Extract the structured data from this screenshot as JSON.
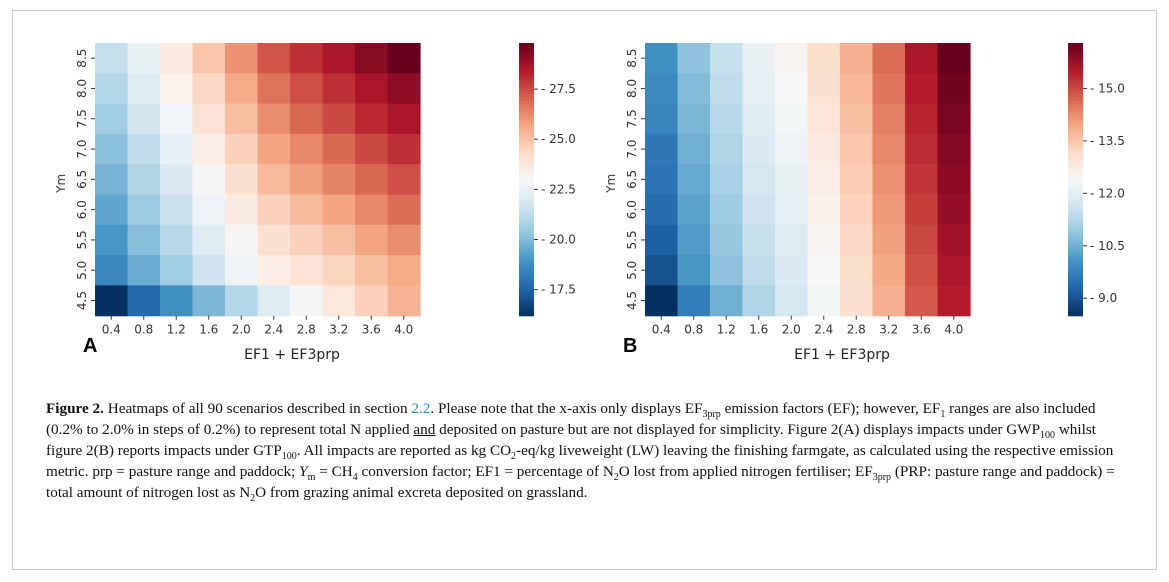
{
  "chart_data": [
    {
      "type": "heatmap",
      "panel_label": "A",
      "xlabel": "EF1 + EF3prp",
      "ylabel": "Ym",
      "x_categories": [
        "0.4",
        "0.8",
        "1.2",
        "1.6",
        "2.0",
        "2.4",
        "2.8",
        "3.2",
        "3.6",
        "4.0"
      ],
      "y_categories": [
        "8.5",
        "8.0",
        "7.5",
        "7.0",
        "6.5",
        "6.0",
        "5.5",
        "5.0",
        "4.5"
      ],
      "colorbar_ticks": [
        "17.5",
        "20.0",
        "22.5",
        "25.0",
        "27.5"
      ],
      "colorbar_range": [
        16.2,
        29.8
      ],
      "colormap": "RdBu_r",
      "values": [
        [
          21.4,
          22.5,
          23.7,
          24.9,
          26.1,
          27.3,
          28.0,
          28.6,
          29.2,
          29.8
        ],
        [
          21.0,
          22.1,
          23.3,
          24.4,
          25.6,
          26.7,
          27.4,
          28.0,
          28.6,
          29.1
        ],
        [
          20.6,
          21.7,
          22.8,
          24.0,
          25.1,
          26.2,
          26.9,
          27.5,
          28.1,
          28.6
        ],
        [
          20.2,
          21.3,
          22.4,
          23.5,
          24.6,
          25.7,
          26.3,
          26.9,
          27.5,
          28.0
        ],
        [
          19.8,
          20.9,
          22.0,
          23.1,
          24.1,
          25.2,
          25.8,
          26.4,
          26.9,
          27.4
        ],
        [
          19.4,
          20.5,
          21.5,
          22.6,
          23.6,
          24.6,
          25.2,
          25.7,
          26.3,
          26.8
        ],
        [
          19.0,
          20.1,
          21.1,
          22.1,
          23.1,
          24.1,
          24.6,
          25.1,
          25.7,
          26.2
        ],
        [
          18.6,
          19.6,
          20.6,
          21.6,
          22.6,
          23.5,
          24.0,
          24.5,
          25.1,
          25.6
        ],
        [
          16.2,
          17.7,
          18.8,
          19.9,
          21.0,
          22.1,
          22.9,
          23.8,
          24.6,
          25.4
        ]
      ]
    },
    {
      "type": "heatmap",
      "panel_label": "B",
      "xlabel": "EF1 + EF3prp",
      "ylabel": "Ym",
      "x_categories": [
        "0.4",
        "0.8",
        "1.2",
        "1.6",
        "2.0",
        "2.4",
        "2.8",
        "3.2",
        "3.6",
        "4.0"
      ],
      "y_categories": [
        "8.5",
        "8.0",
        "7.5",
        "7.0",
        "6.5",
        "6.0",
        "5.5",
        "5.0",
        "4.5"
      ],
      "colorbar_ticks": [
        "9.0",
        "10.5",
        "12.0",
        "13.5",
        "15.0"
      ],
      "colorbar_range": [
        8.5,
        16.3
      ],
      "colormap": "RdBu_r",
      "values": [
        [
          10.0,
          10.8,
          11.5,
          12.1,
          12.5,
          13.1,
          13.8,
          14.6,
          15.6,
          16.3
        ],
        [
          9.9,
          10.7,
          11.4,
          12.0,
          12.4,
          13.0,
          13.7,
          14.5,
          15.5,
          16.2
        ],
        [
          9.8,
          10.6,
          11.3,
          11.9,
          12.3,
          12.9,
          13.6,
          14.4,
          15.4,
          16.1
        ],
        [
          9.6,
          10.5,
          11.2,
          11.8,
          12.2,
          12.8,
          13.5,
          14.3,
          15.3,
          16.0
        ],
        [
          9.5,
          10.4,
          11.1,
          11.7,
          12.1,
          12.7,
          13.4,
          14.2,
          15.2,
          15.9
        ],
        [
          9.4,
          10.3,
          11.0,
          11.6,
          12.0,
          12.6,
          13.3,
          14.1,
          15.1,
          15.8
        ],
        [
          9.2,
          10.2,
          10.9,
          11.5,
          11.9,
          12.5,
          13.2,
          14.0,
          15.0,
          15.7
        ],
        [
          9.0,
          10.1,
          10.8,
          11.4,
          11.8,
          12.4,
          13.1,
          13.9,
          14.9,
          15.6
        ],
        [
          8.5,
          9.7,
          10.5,
          11.2,
          11.7,
          12.3,
          13.0,
          13.8,
          14.8,
          15.5
        ]
      ]
    }
  ],
  "caption": {
    "label": "Figure 2.",
    "s1": " Heatmaps of all 90 scenarios described in section ",
    "section_link": "2.2",
    "s2": ". Please note that the x-axis only displays EF",
    "sub_3prp": "3prp",
    "s3": " emission factors (EF); however, EF",
    "sub_1": "1",
    "s4": " ranges are also included (0.2% to 2.0% in steps of 0.2%) to represent total N applied ",
    "and_underlined": "and",
    "s5": " deposited on pasture but are not displayed for simplicity. Figure 2(A) displays impacts under GWP",
    "sub_100": "100",
    "s6": " whilst figure 2(B) reports impacts under GTP",
    "s7": ". All impacts are reported as kg CO",
    "sub_2": "2",
    "s8": "-eq/kg liveweight (LW) leaving the finishing farmgate, as calculated using the respective emission metric. prp = pasture range and paddock; ",
    "ym_Y": "Y",
    "ym_sub": "m",
    "s9": " = CH",
    "sub_4": "4",
    "s10": " conversion factor; EF1 = percentage of N",
    "s11": "O lost from applied nitrogen fertiliser; EF",
    "s12": " (PRP: pasture range and paddock) = total amount of nitrogen lost as N",
    "s13": "O from grazing animal excreta deposited on grassland."
  }
}
